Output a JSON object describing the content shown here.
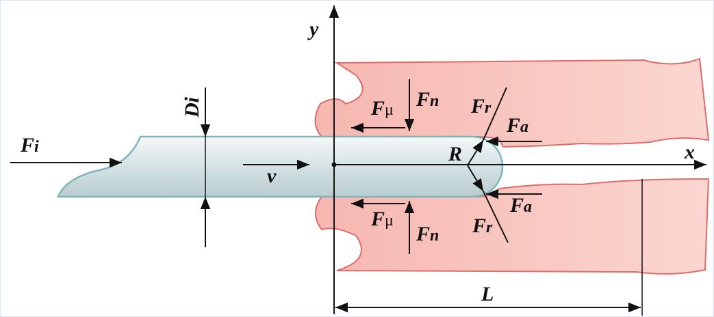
{
  "axes": {
    "x": "x",
    "y": "y"
  },
  "tube": {
    "diameter": {
      "base": "D",
      "sub": "i"
    },
    "velocity": "v",
    "input_force": {
      "base": "F",
      "sub": "i"
    },
    "tip_radius": "R"
  },
  "forces": {
    "upper": {
      "friction": {
        "base": "F",
        "sub": "μ"
      },
      "normal": {
        "base": "F",
        "sub": "n"
      },
      "radial": {
        "base": "F",
        "sub": "r"
      },
      "axial": {
        "base": "F",
        "sub": "a"
      }
    },
    "lower": {
      "friction": {
        "base": "F",
        "sub": "μ"
      },
      "normal": {
        "base": "F",
        "sub": "n"
      },
      "radial": {
        "base": "F",
        "sub": "r"
      },
      "axial": {
        "base": "F",
        "sub": "a"
      }
    }
  },
  "length": "L"
}
